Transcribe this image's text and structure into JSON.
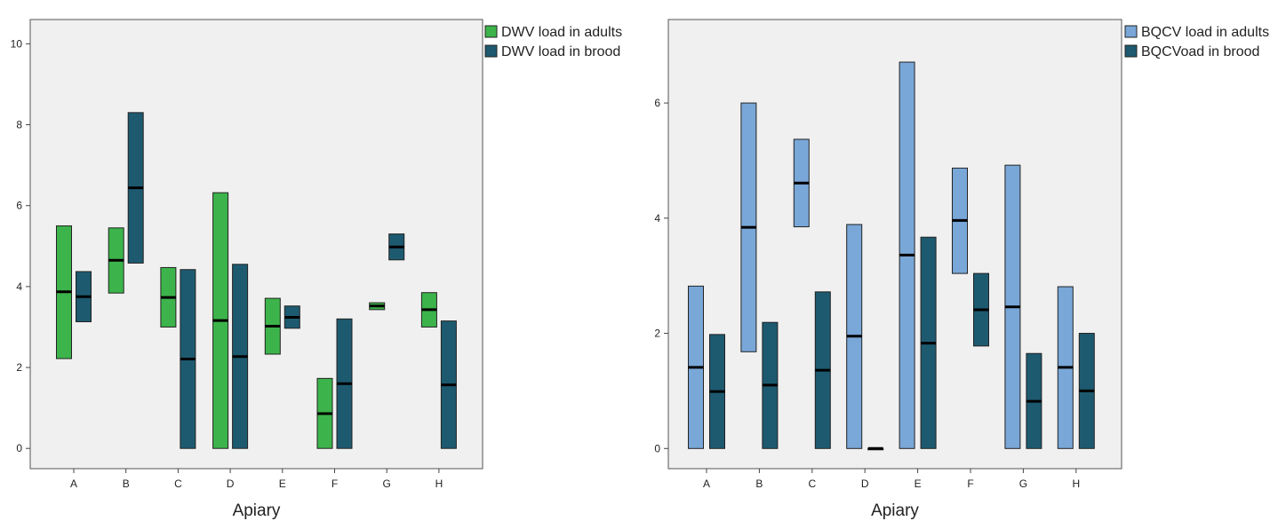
{
  "chart_data": [
    {
      "type": "boxplot",
      "xlabel": "Apiary",
      "ylabel": "",
      "ylim": [
        -0.5,
        10.6
      ],
      "yticks": [
        0,
        2,
        4,
        6,
        8,
        10
      ],
      "categories": [
        "A",
        "B",
        "C",
        "D",
        "E",
        "F",
        "G",
        "H"
      ],
      "legend_position": "top-right-outside",
      "series": [
        {
          "name": "DWV load in adults",
          "color": "#3cb44b",
          "boxes": [
            {
              "low": 2.22,
              "median": 3.87,
              "high": 5.5
            },
            {
              "low": 3.84,
              "median": 4.65,
              "high": 5.45
            },
            {
              "low": 3.0,
              "median": 3.73,
              "high": 4.47
            },
            {
              "low": 0.0,
              "median": 3.16,
              "high": 6.32
            },
            {
              "low": 2.33,
              "median": 3.02,
              "high": 3.71
            },
            {
              "low": 0.0,
              "median": 0.86,
              "high": 1.73
            },
            {
              "low": 3.43,
              "median": 3.52,
              "high": 3.6
            },
            {
              "low": 3.0,
              "median": 3.43,
              "high": 3.85
            }
          ]
        },
        {
          "name": "DWV load in brood",
          "color": "#1d5a70",
          "boxes": [
            {
              "low": 3.13,
              "median": 3.75,
              "high": 4.37
            },
            {
              "low": 4.58,
              "median": 6.44,
              "high": 8.3
            },
            {
              "low": 0.0,
              "median": 2.21,
              "high": 4.42
            },
            {
              "low": 0.0,
              "median": 2.27,
              "high": 4.55
            },
            {
              "low": 2.97,
              "median": 3.24,
              "high": 3.52
            },
            {
              "low": 0.0,
              "median": 1.6,
              "high": 3.2
            },
            {
              "low": 4.66,
              "median": 4.98,
              "high": 5.3
            },
            {
              "low": 0.0,
              "median": 1.57,
              "high": 3.15
            }
          ]
        }
      ]
    },
    {
      "type": "boxplot",
      "xlabel": "Apiary",
      "ylabel": "",
      "ylim": [
        -0.35,
        7.45
      ],
      "yticks": [
        0,
        2,
        4,
        6
      ],
      "categories": [
        "A",
        "B",
        "C",
        "D",
        "E",
        "F",
        "G",
        "H"
      ],
      "legend_position": "top-right-outside",
      "series": [
        {
          "name": "BQCV load in adults",
          "color": "#79a7d8",
          "boxes": [
            {
              "low": 0.0,
              "median": 1.41,
              "high": 2.82
            },
            {
              "low": 1.68,
              "median": 3.84,
              "high": 6.0
            },
            {
              "low": 3.85,
              "median": 4.61,
              "high": 5.37
            },
            {
              "low": 0.0,
              "median": 1.95,
              "high": 3.89
            },
            {
              "low": 0.0,
              "median": 3.36,
              "high": 6.71
            },
            {
              "low": 3.04,
              "median": 3.96,
              "high": 4.87
            },
            {
              "low": 0.0,
              "median": 2.46,
              "high": 4.92
            },
            {
              "low": 0.0,
              "median": 1.41,
              "high": 2.81
            }
          ]
        },
        {
          "name": "BQCVoad in brood",
          "color": "#1d5a70",
          "boxes": [
            {
              "low": 0.0,
              "median": 0.99,
              "high": 1.98
            },
            {
              "low": 0.0,
              "median": 1.1,
              "high": 2.19
            },
            {
              "low": 0.0,
              "median": 1.36,
              "high": 2.72
            },
            {
              "low": 0.0,
              "median": 0.0,
              "high": 0.0
            },
            {
              "low": 0.0,
              "median": 1.83,
              "high": 3.67
            },
            {
              "low": 1.78,
              "median": 2.41,
              "high": 3.04
            },
            {
              "low": 0.0,
              "median": 0.82,
              "high": 1.65
            },
            {
              "low": 0.0,
              "median": 1.0,
              "high": 2.0
            }
          ]
        }
      ]
    }
  ]
}
